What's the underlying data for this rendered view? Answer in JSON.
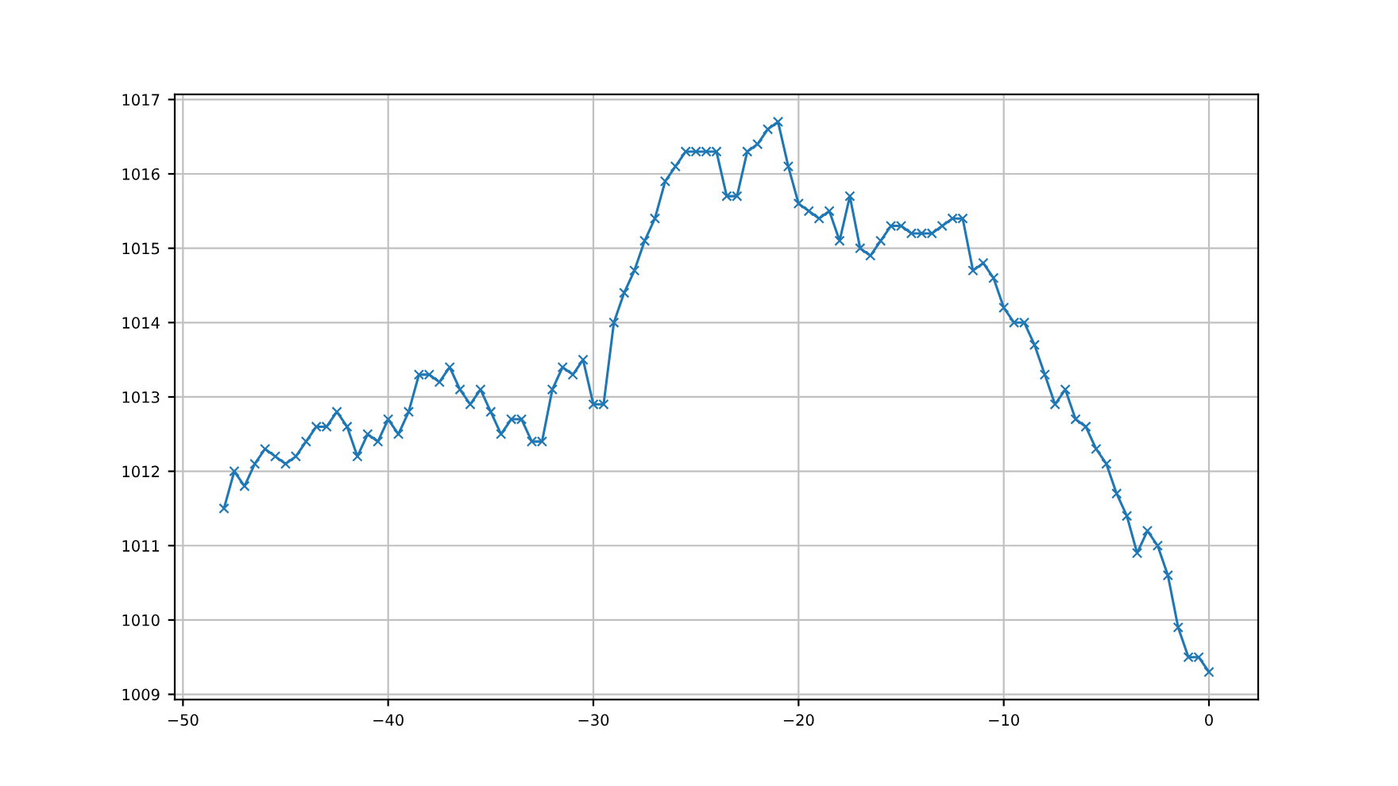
{
  "chart_data": {
    "type": "line",
    "x": [
      -48,
      -47.5,
      -47,
      -46.5,
      -46,
      -45.5,
      -45,
      -44.5,
      -44,
      -43.5,
      -43,
      -42.5,
      -42,
      -41.5,
      -41,
      -40.5,
      -40,
      -39.5,
      -39,
      -38.5,
      -38,
      -37.5,
      -37,
      -36.5,
      -36,
      -35.5,
      -35,
      -34.5,
      -34,
      -33.5,
      -33,
      -32.5,
      -32,
      -31.5,
      -31,
      -30.5,
      -30,
      -29.5,
      -29,
      -28.5,
      -28,
      -27.5,
      -27,
      -26.5,
      -26,
      -25.5,
      -25,
      -24.5,
      -24,
      -23.5,
      -23,
      -22.5,
      -22,
      -21.5,
      -21,
      -20.5,
      -20,
      -19.5,
      -19,
      -18.5,
      -18,
      -17.5,
      -17,
      -16.5,
      -16,
      -15.5,
      -15,
      -14.5,
      -14,
      -13.5,
      -13,
      -12.5,
      -12,
      -11.5,
      -11,
      -10.5,
      -10,
      -9.5,
      -9,
      -8.5,
      -8,
      -7.5,
      -7,
      -6.5,
      -6,
      -5.5,
      -5,
      -4.5,
      -4,
      -3.5,
      -3,
      -2.5,
      -2,
      -1.5,
      -1,
      -0.5,
      0
    ],
    "series": [
      {
        "color": "#1f77b4",
        "values": [
          1011.5,
          1012.0,
          1011.8,
          1012.1,
          1012.3,
          1012.2,
          1012.1,
          1012.2,
          1012.4,
          1012.6,
          1012.6,
          1012.8,
          1012.6,
          1012.2,
          1012.5,
          1012.4,
          1012.7,
          1012.5,
          1012.8,
          1013.3,
          1013.3,
          1013.2,
          1013.4,
          1013.1,
          1012.9,
          1013.1,
          1012.8,
          1012.5,
          1012.7,
          1012.7,
          1012.4,
          1012.4,
          1013.1,
          1013.4,
          1013.3,
          1013.5,
          1012.9,
          1012.9,
          1014.0,
          1014.4,
          1014.7,
          1015.1,
          1015.4,
          1015.9,
          1016.1,
          1016.3,
          1016.3,
          1016.3,
          1016.3,
          1015.7,
          1015.7,
          1016.3,
          1016.4,
          1016.6,
          1016.7,
          1016.1,
          1015.6,
          1015.5,
          1015.4,
          1015.5,
          1015.1,
          1015.7,
          1015.0,
          1014.9,
          1015.1,
          1015.3,
          1015.3,
          1015.2,
          1015.2,
          1015.2,
          1015.3,
          1015.4,
          1015.4,
          1014.7,
          1014.8,
          1014.6,
          1014.2,
          1014.0,
          1014.0,
          1013.7,
          1013.3,
          1012.9,
          1013.1,
          1012.7,
          1012.6,
          1012.3,
          1012.1,
          1011.7,
          1011.4,
          1010.9,
          1011.2,
          1011.0,
          1010.6,
          1009.9,
          1009.5,
          1009.5,
          1009.3
        ]
      }
    ],
    "xlim": [
      -50.4,
      2.4
    ],
    "ylim": [
      1008.93,
      1017.07
    ],
    "xticks": [
      -50,
      -40,
      -30,
      -20,
      -10,
      0
    ],
    "yticks": [
      1009,
      1010,
      1011,
      1012,
      1013,
      1014,
      1015,
      1016,
      1017
    ],
    "grid": true,
    "marker": "cross",
    "line_style": "solid"
  }
}
